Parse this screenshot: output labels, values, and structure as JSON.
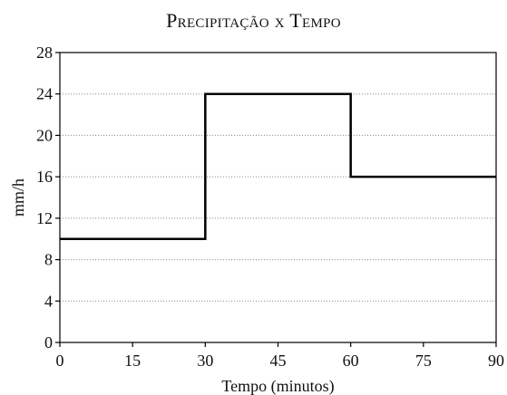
{
  "chart_data": {
    "type": "line",
    "title": "Precipitação x Tempo",
    "xlabel": "Tempo (minutos)",
    "ylabel": "mm/h",
    "xlim": [
      0,
      90
    ],
    "ylim": [
      0,
      28
    ],
    "xticks": [
      0,
      15,
      30,
      45,
      60,
      75,
      90
    ],
    "yticks": [
      0,
      4,
      8,
      12,
      16,
      20,
      24,
      28
    ],
    "grid": "horizontal dotted",
    "legend": "none",
    "series": [
      {
        "step": true,
        "x": [
          0,
          30,
          30,
          60,
          60,
          90
        ],
        "y": [
          10,
          10,
          24,
          24,
          16,
          16
        ],
        "color": "#000000"
      }
    ]
  }
}
